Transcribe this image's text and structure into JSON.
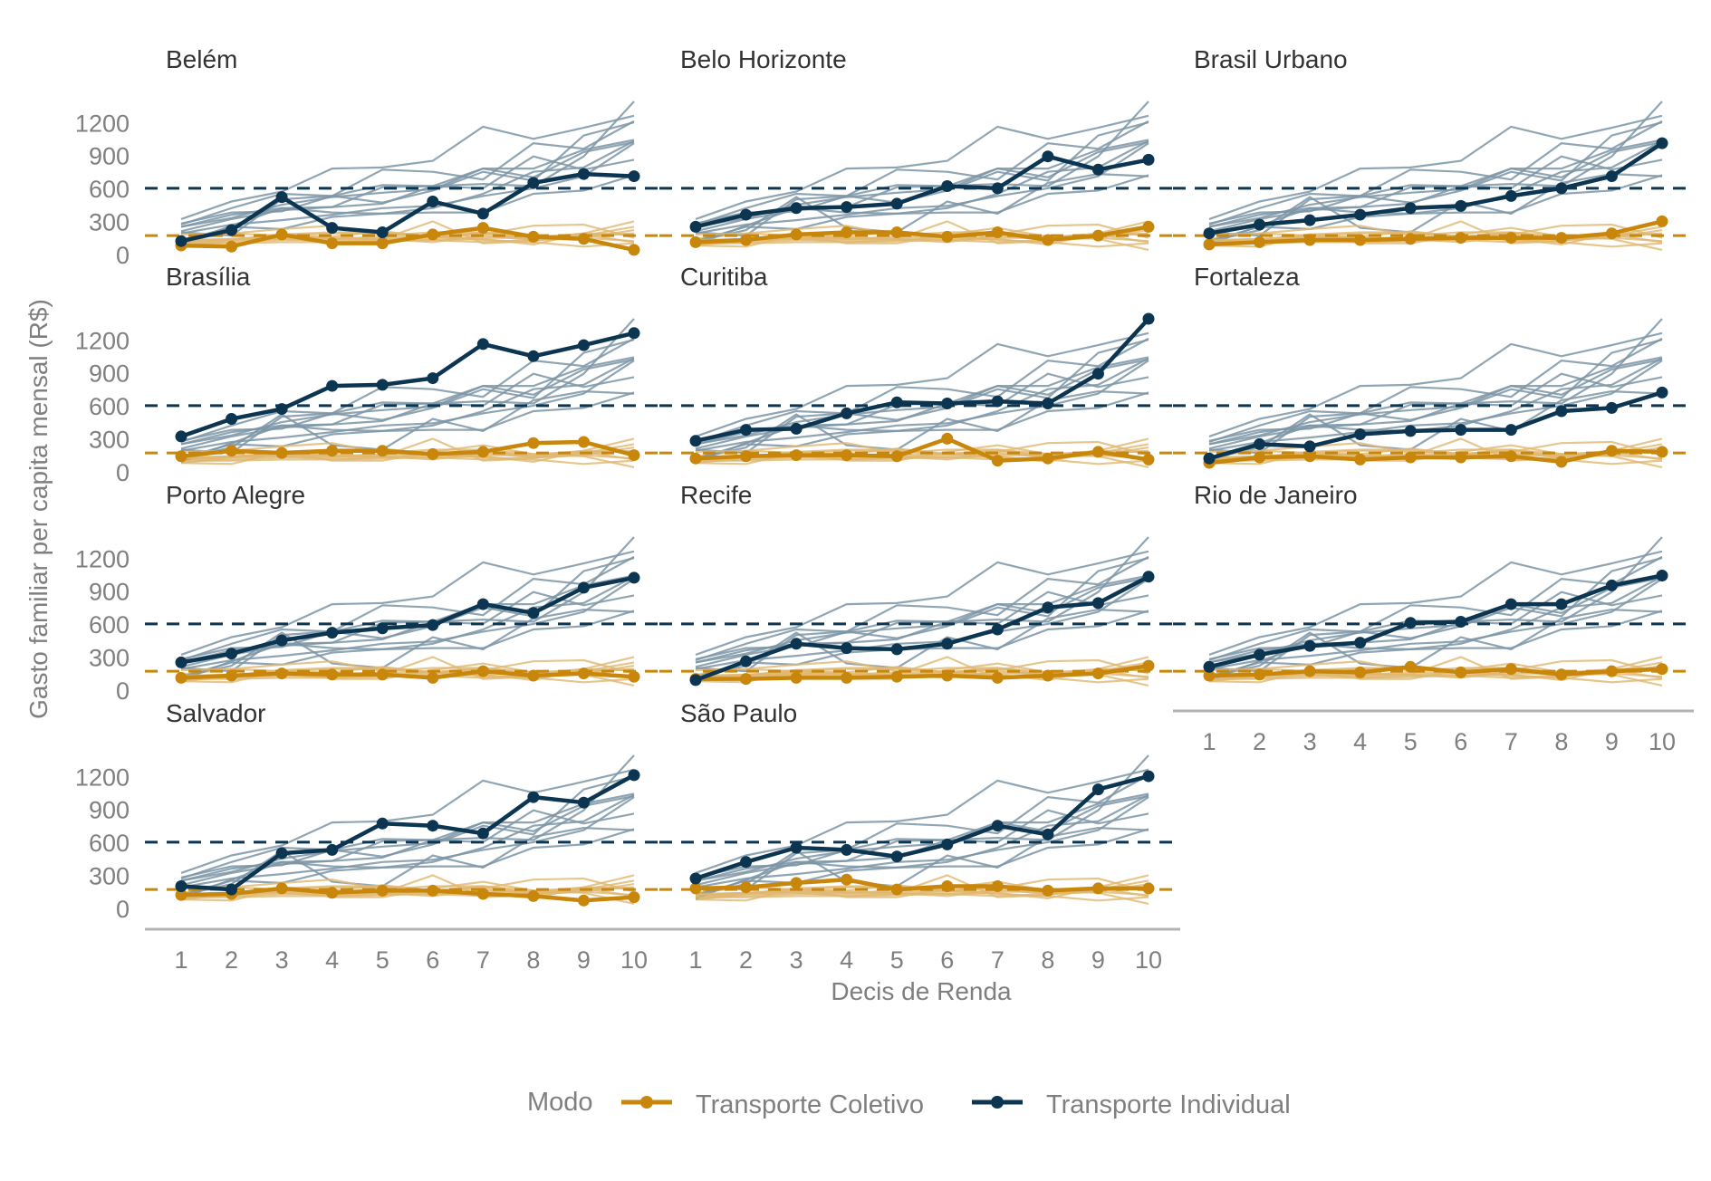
{
  "chart_data": {
    "type": "line",
    "layout": "facet-wrap 3 columns",
    "xlabel": "Decis de Renda",
    "ylabel": "Gasto familiar per capita mensal (R$)",
    "x": [
      1,
      2,
      3,
      4,
      5,
      6,
      7,
      8,
      9,
      10
    ],
    "x_tick_labels": [
      "1",
      "2",
      "3",
      "4",
      "5",
      "6",
      "7",
      "8",
      "9",
      "10"
    ],
    "ylim": [
      0,
      1400
    ],
    "y_ticks": [
      0,
      300,
      600,
      900,
      1200
    ],
    "y_tick_labels": [
      "0",
      "300",
      "600",
      "900",
      "1200"
    ],
    "grid": false,
    "legend": {
      "title": "Modo",
      "position": "bottom",
      "items": [
        {
          "label": "Transporte Coletivo",
          "color": "#c8860a"
        },
        {
          "label": "Transporte Individual",
          "color": "#0b3550"
        }
      ]
    },
    "reference_lines": {
      "Transporte Coletivo": 180,
      "Transporte Individual": 610
    },
    "colors": {
      "coletivo": "#c8860a",
      "individual": "#0b3550",
      "coletivo_background": "#e0b870",
      "individual_background": "#7d95a6",
      "axis": "#b3b3b3"
    },
    "panels": [
      {
        "title": "Belém",
        "coletivo": [
          90,
          80,
          190,
          110,
          110,
          190,
          250,
          170,
          150,
          50
        ],
        "individual": [
          130,
          230,
          530,
          250,
          210,
          490,
          380,
          660,
          740,
          720
        ]
      },
      {
        "title": "Belo Horizonte",
        "coletivo": [
          120,
          140,
          190,
          210,
          210,
          170,
          210,
          140,
          180,
          260
        ],
        "individual": [
          260,
          370,
          430,
          440,
          470,
          630,
          610,
          900,
          780,
          870
        ]
      },
      {
        "title": "Brasil Urbano",
        "coletivo": [
          100,
          120,
          140,
          140,
          150,
          160,
          160,
          160,
          200,
          310
        ],
        "individual": [
          200,
          280,
          320,
          370,
          430,
          450,
          540,
          610,
          720,
          1020
        ]
      },
      {
        "title": "Brasília",
        "coletivo": [
          150,
          200,
          180,
          200,
          200,
          170,
          190,
          270,
          280,
          160
        ],
        "individual": [
          330,
          490,
          580,
          790,
          800,
          860,
          1170,
          1060,
          1160,
          1270
        ]
      },
      {
        "title": "Curitiba",
        "coletivo": [
          130,
          150,
          160,
          160,
          150,
          310,
          110,
          130,
          190,
          120
        ],
        "individual": [
          290,
          390,
          400,
          540,
          640,
          630,
          650,
          630,
          900,
          1400
        ]
      },
      {
        "title": "Fortaleza",
        "coletivo": [
          90,
          140,
          150,
          120,
          140,
          140,
          150,
          100,
          200,
          190
        ],
        "individual": [
          130,
          260,
          240,
          350,
          380,
          390,
          390,
          560,
          590,
          730
        ]
      },
      {
        "title": "Porto Alegre",
        "coletivo": [
          120,
          140,
          160,
          150,
          150,
          120,
          180,
          140,
          160,
          130
        ],
        "individual": [
          260,
          340,
          460,
          530,
          570,
          600,
          790,
          710,
          940,
          1030
        ]
      },
      {
        "title": "Recife",
        "coletivo": [
          110,
          110,
          120,
          120,
          130,
          140,
          120,
          140,
          160,
          230
        ],
        "individual": [
          100,
          270,
          430,
          390,
          380,
          430,
          560,
          760,
          800,
          1040
        ]
      },
      {
        "title": "Rio de Janeiro",
        "coletivo": [
          140,
          150,
          180,
          170,
          220,
          170,
          200,
          150,
          180,
          200
        ],
        "individual": [
          220,
          330,
          410,
          440,
          620,
          630,
          790,
          790,
          960,
          1050
        ]
      },
      {
        "title": "Salvador",
        "coletivo": [
          130,
          140,
          190,
          150,
          170,
          170,
          140,
          120,
          80,
          110
        ],
        "individual": [
          210,
          180,
          510,
          540,
          780,
          760,
          690,
          1020,
          970,
          1220
        ]
      },
      {
        "title": "São Paulo",
        "coletivo": [
          190,
          200,
          240,
          270,
          180,
          210,
          210,
          170,
          190,
          190
        ],
        "individual": [
          280,
          430,
          560,
          540,
          480,
          590,
          760,
          680,
          1090,
          1210
        ]
      }
    ]
  }
}
